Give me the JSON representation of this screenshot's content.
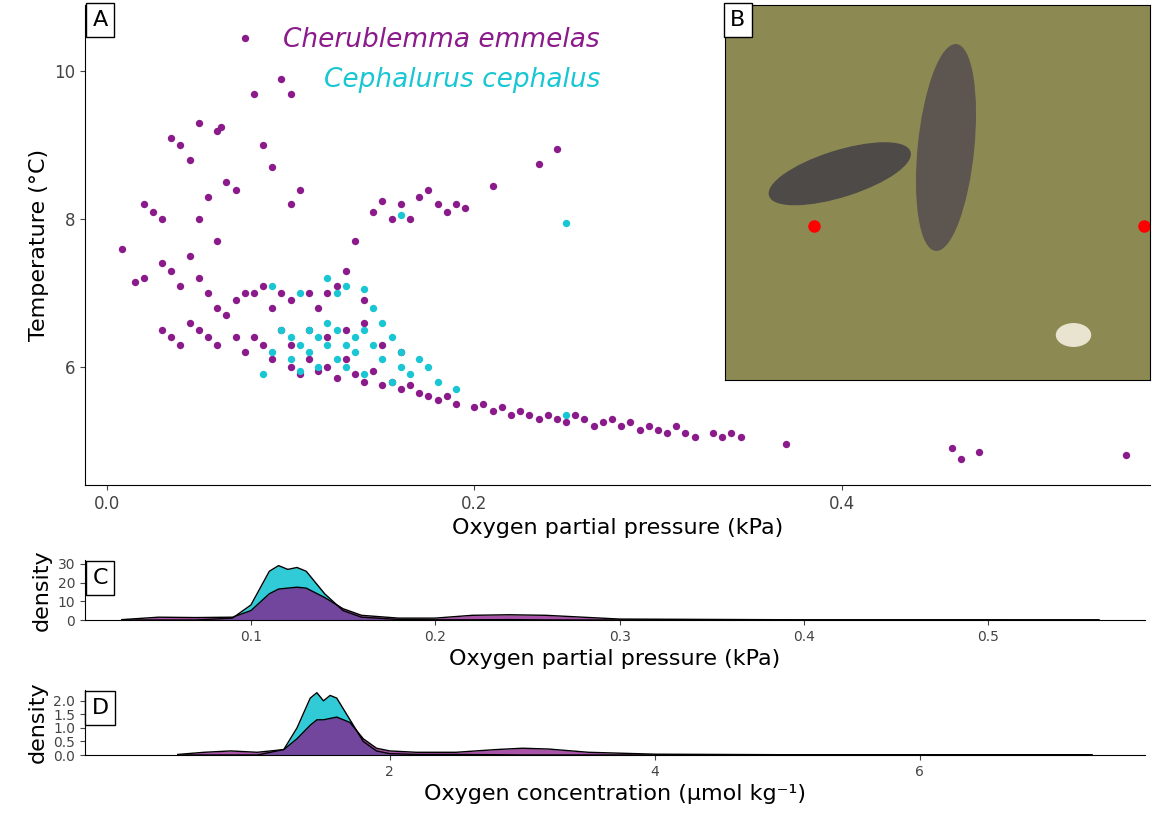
{
  "chart_data": [
    {
      "type": "scatter",
      "panel_label": "A",
      "x_label": "Oxygen partial pressure (kPa)",
      "y_label": "Temperature (°C)",
      "xlim": [
        -0.012,
        0.568
      ],
      "ylim": [
        4.4,
        10.9
      ],
      "xticks": [
        {
          "value": 0,
          "label": "0.0"
        },
        0.2,
        0.4
      ],
      "yticks": [
        6,
        8,
        10
      ],
      "legend": "upper center",
      "series": [
        {
          "name": "Cherublemma emmelas",
          "color": "#8B1A8B",
          "values": [
            [
              0.008,
              7.6
            ],
            [
              0.02,
              8.2
            ],
            [
              0.025,
              8.1
            ],
            [
              0.03,
              8.0
            ],
            [
              0.035,
              9.1
            ],
            [
              0.04,
              9.0
            ],
            [
              0.045,
              8.8
            ],
            [
              0.05,
              9.3
            ],
            [
              0.055,
              8.3
            ],
            [
              0.06,
              9.2
            ],
            [
              0.062,
              9.25
            ],
            [
              0.065,
              8.5
            ],
            [
              0.07,
              8.4
            ],
            [
              0.075,
              10.45
            ],
            [
              0.08,
              9.7
            ],
            [
              0.085,
              9.0
            ],
            [
              0.09,
              8.7
            ],
            [
              0.095,
              9.9
            ],
            [
              0.1,
              9.7
            ],
            [
              0.1,
              8.2
            ],
            [
              0.105,
              8.4
            ],
            [
              0.11,
              7.0
            ],
            [
              0.06,
              7.7
            ],
            [
              0.05,
              8.0
            ],
            [
              0.045,
              7.5
            ],
            [
              0.035,
              7.3
            ],
            [
              0.02,
              7.2
            ],
            [
              0.015,
              7.15
            ],
            [
              0.03,
              7.4
            ],
            [
              0.04,
              7.1
            ],
            [
              0.05,
              7.2
            ],
            [
              0.055,
              7.0
            ],
            [
              0.06,
              6.8
            ],
            [
              0.065,
              6.7
            ],
            [
              0.07,
              6.9
            ],
            [
              0.075,
              7.0
            ],
            [
              0.08,
              7.0
            ],
            [
              0.085,
              7.1
            ],
            [
              0.09,
              6.8
            ],
            [
              0.095,
              7.0
            ],
            [
              0.1,
              6.9
            ],
            [
              0.03,
              6.5
            ],
            [
              0.035,
              6.4
            ],
            [
              0.04,
              6.3
            ],
            [
              0.045,
              6.6
            ],
            [
              0.05,
              6.5
            ],
            [
              0.055,
              6.4
            ],
            [
              0.06,
              6.3
            ],
            [
              0.07,
              6.4
            ],
            [
              0.075,
              6.2
            ],
            [
              0.08,
              6.4
            ],
            [
              0.085,
              6.3
            ],
            [
              0.09,
              6.1
            ],
            [
              0.1,
              6.0
            ],
            [
              0.105,
              5.9
            ],
            [
              0.11,
              6.1
            ],
            [
              0.115,
              5.95
            ],
            [
              0.12,
              6.0
            ],
            [
              0.125,
              5.85
            ],
            [
              0.13,
              6.1
            ],
            [
              0.135,
              5.9
            ],
            [
              0.14,
              5.8
            ],
            [
              0.145,
              5.95
            ],
            [
              0.15,
              5.75
            ],
            [
              0.155,
              5.8
            ],
            [
              0.16,
              5.7
            ],
            [
              0.165,
              5.75
            ],
            [
              0.17,
              5.65
            ],
            [
              0.175,
              5.6
            ],
            [
              0.18,
              5.55
            ],
            [
              0.185,
              5.6
            ],
            [
              0.19,
              5.5
            ],
            [
              0.2,
              5.45
            ],
            [
              0.205,
              5.5
            ],
            [
              0.21,
              5.4
            ],
            [
              0.215,
              5.45
            ],
            [
              0.22,
              5.35
            ],
            [
              0.225,
              5.4
            ],
            [
              0.23,
              5.35
            ],
            [
              0.235,
              5.3
            ],
            [
              0.24,
              5.35
            ],
            [
              0.245,
              5.3
            ],
            [
              0.25,
              5.25
            ],
            [
              0.255,
              5.35
            ],
            [
              0.26,
              5.3
            ],
            [
              0.265,
              5.2
            ],
            [
              0.27,
              5.25
            ],
            [
              0.275,
              5.3
            ],
            [
              0.28,
              5.2
            ],
            [
              0.285,
              5.25
            ],
            [
              0.29,
              5.15
            ],
            [
              0.295,
              5.2
            ],
            [
              0.3,
              5.15
            ],
            [
              0.305,
              5.1
            ],
            [
              0.31,
              5.2
            ],
            [
              0.315,
              5.1
            ],
            [
              0.32,
              5.05
            ],
            [
              0.33,
              5.1
            ],
            [
              0.335,
              5.05
            ],
            [
              0.34,
              5.1
            ],
            [
              0.345,
              5.05
            ],
            [
              0.37,
              4.95
            ],
            [
              0.46,
              4.9
            ],
            [
              0.465,
              4.75
            ],
            [
              0.475,
              4.85
            ],
            [
              0.555,
              4.8
            ],
            [
              0.11,
              6.5
            ],
            [
              0.12,
              6.4
            ],
            [
              0.13,
              6.5
            ],
            [
              0.14,
              6.6
            ],
            [
              0.15,
              6.3
            ],
            [
              0.16,
              6.2
            ],
            [
              0.14,
              6.9
            ],
            [
              0.13,
              7.3
            ],
            [
              0.135,
              7.7
            ],
            [
              0.145,
              8.1
            ],
            [
              0.15,
              8.25
            ],
            [
              0.155,
              8.0
            ],
            [
              0.16,
              8.2
            ],
            [
              0.165,
              8.0
            ],
            [
              0.17,
              8.3
            ],
            [
              0.175,
              8.4
            ],
            [
              0.18,
              8.2
            ],
            [
              0.185,
              8.1
            ],
            [
              0.19,
              8.2
            ],
            [
              0.195,
              8.15
            ],
            [
              0.21,
              8.45
            ],
            [
              0.235,
              8.75
            ],
            [
              0.245,
              8.95
            ],
            [
              0.125,
              7.1
            ],
            [
              0.12,
              7.0
            ],
            [
              0.115,
              6.8
            ],
            [
              0.1,
              6.3
            ],
            [
              0.095,
              6.5
            ]
          ]
        },
        {
          "name": "Cephalurus cephalus",
          "color": "#19C6D3",
          "values": [
            [
              0.085,
              5.9
            ],
            [
              0.09,
              6.2
            ],
            [
              0.09,
              7.1
            ],
            [
              0.095,
              6.5
            ],
            [
              0.1,
              6.4
            ],
            [
              0.1,
              6.1
            ],
            [
              0.105,
              6.3
            ],
            [
              0.105,
              7.0
            ],
            [
              0.11,
              6.5
            ],
            [
              0.11,
              6.2
            ],
            [
              0.115,
              6.0
            ],
            [
              0.115,
              6.4
            ],
            [
              0.12,
              6.3
            ],
            [
              0.12,
              6.6
            ],
            [
              0.12,
              7.2
            ],
            [
              0.125,
              6.1
            ],
            [
              0.125,
              6.5
            ],
            [
              0.125,
              7.0
            ],
            [
              0.13,
              6.3
            ],
            [
              0.13,
              7.1
            ],
            [
              0.13,
              6.0
            ],
            [
              0.135,
              6.4
            ],
            [
              0.135,
              6.2
            ],
            [
              0.14,
              6.5
            ],
            [
              0.14,
              5.9
            ],
            [
              0.145,
              6.3
            ],
            [
              0.15,
              6.1
            ],
            [
              0.15,
              6.6
            ],
            [
              0.155,
              6.4
            ],
            [
              0.16,
              6.0
            ],
            [
              0.16,
              6.2
            ],
            [
              0.165,
              5.9
            ],
            [
              0.17,
              6.1
            ],
            [
              0.175,
              6.0
            ],
            [
              0.18,
              5.8
            ],
            [
              0.19,
              5.7
            ],
            [
              0.16,
              8.05
            ],
            [
              0.25,
              7.95
            ],
            [
              0.25,
              5.35
            ],
            [
              0.105,
              5.95
            ],
            [
              0.145,
              6.8
            ],
            [
              0.14,
              7.05
            ],
            [
              0.155,
              5.8
            ]
          ]
        }
      ]
    },
    {
      "type": "image",
      "panel_label": "B"
    },
    {
      "type": "area",
      "panel_label": "C",
      "x_label": "Oxygen partial pressure (kPa)",
      "y_label": "density",
      "xlim": [
        0.01,
        0.585
      ],
      "ylim": [
        0,
        32
      ],
      "xticks": [
        0.1,
        0.2,
        0.3,
        0.4,
        0.5
      ],
      "yticks": [
        0,
        10,
        20,
        30
      ],
      "x": [
        0.03,
        0.05,
        0.07,
        0.09,
        0.1,
        0.11,
        0.115,
        0.12,
        0.125,
        0.13,
        0.14,
        0.15,
        0.16,
        0.18,
        0.2,
        0.22,
        0.24,
        0.26,
        0.28,
        0.3,
        0.35,
        0.4,
        0.45,
        0.5,
        0.56
      ],
      "series": [
        {
          "name": "Cephalurus cephalus",
          "color": "#19C6D3",
          "values": [
            0,
            0,
            0,
            1,
            8,
            26,
            29,
            27,
            28,
            26,
            14,
            5,
            1.5,
            0.3,
            0.1,
            0.1,
            0.2,
            0.05,
            0,
            0,
            0,
            0,
            0,
            0,
            0
          ]
        },
        {
          "name": "Cherublemma emmelas",
          "color": "#8B1A8B",
          "values": [
            0.2,
            1.5,
            1.3,
            1.5,
            5,
            14,
            16.5,
            17,
            17.5,
            17,
            12,
            6,
            2.5,
            1,
            1,
            2.5,
            2.8,
            2.5,
            1.5,
            0.5,
            0.3,
            0.1,
            0.1,
            0.1,
            0.05
          ]
        }
      ]
    },
    {
      "type": "area",
      "panel_label": "D",
      "x_label": "Oxygen concentration (µmol kg⁻¹)",
      "y_label": "density",
      "xlim": [
        -0.3,
        7.7
      ],
      "ylim": [
        0,
        2.4
      ],
      "xticks": [
        2,
        4,
        6
      ],
      "yticks": [
        {
          "value": 0,
          "label": "0.0"
        },
        0.5,
        {
          "value": 1,
          "label": "1.0"
        },
        1.5,
        {
          "value": 2,
          "label": "2.0"
        }
      ],
      "x": [
        0.4,
        0.6,
        0.8,
        1.0,
        1.2,
        1.3,
        1.4,
        1.45,
        1.5,
        1.55,
        1.6,
        1.7,
        1.8,
        1.9,
        2.0,
        2.2,
        2.5,
        2.8,
        3.0,
        3.2,
        3.5,
        4.0,
        5.0,
        6.0,
        7.3
      ],
      "series": [
        {
          "name": "Cephalurus cephalus",
          "color": "#19C6D3",
          "values": [
            0,
            0,
            0,
            0,
            0.2,
            1.0,
            2.1,
            2.3,
            2.0,
            2.2,
            2.1,
            1.3,
            0.5,
            0.15,
            0.05,
            0.02,
            0.02,
            0.01,
            0,
            0,
            0,
            0,
            0,
            0,
            0
          ]
        },
        {
          "name": "Cherublemma emmelas",
          "color": "#8B1A8B",
          "values": [
            0.02,
            0.1,
            0.15,
            0.1,
            0.2,
            0.6,
            1.1,
            1.3,
            1.3,
            1.35,
            1.4,
            1.2,
            0.6,
            0.25,
            0.15,
            0.1,
            0.1,
            0.2,
            0.25,
            0.22,
            0.1,
            0.03,
            0.01,
            0.01,
            0.01
          ]
        }
      ]
    }
  ]
}
